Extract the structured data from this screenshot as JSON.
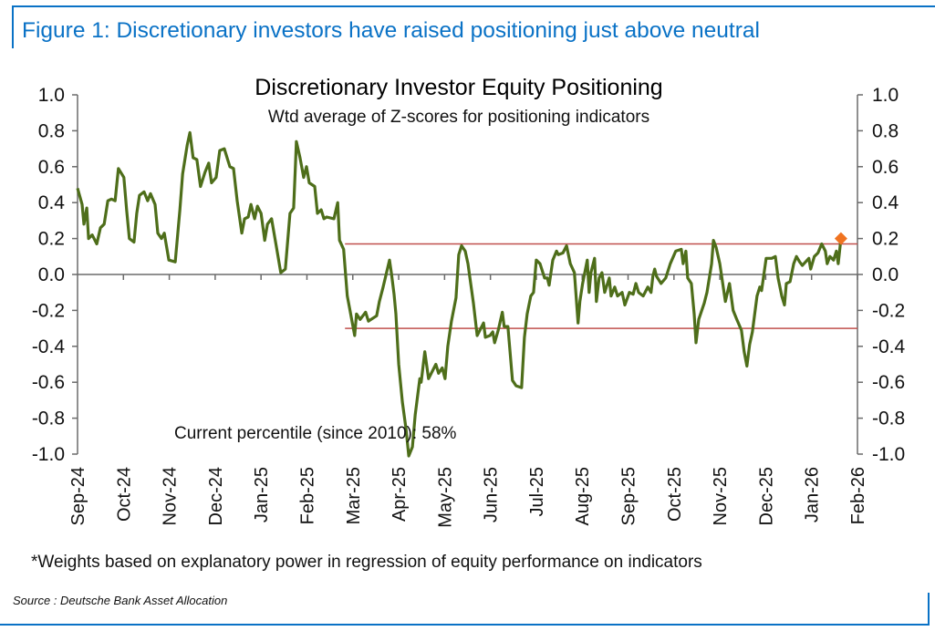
{
  "figure_title": "Figure 1: Discretionary investors have raised positioning just above neutral",
  "footnote": "*Weights based on explanatory power in regression of equity performance on indicators",
  "source": "Source : Deutsche Bank Asset Allocation",
  "colors": {
    "frame": "#0a72c6",
    "line": "#4e6e1a",
    "band": "#c0504d",
    "marker": "#f07320",
    "axis": "#6b6b6b"
  },
  "chart_data": {
    "type": "line",
    "title": "Discretionary Investor Equity Positioning",
    "subtitle": "Wtd average of Z-scores for positioning indicators",
    "annotation": "Current percentile (since 2010): 58%",
    "xlabel": "",
    "ylabel": "",
    "ylim": [
      -1.0,
      1.0
    ],
    "yticks": [
      "1.0",
      "0.8",
      "0.6",
      "0.4",
      "0.2",
      "0.0",
      "-0.2",
      "-0.4",
      "-0.6",
      "-0.8",
      "-1.0"
    ],
    "ytick_values": [
      1.0,
      0.8,
      0.6,
      0.4,
      0.2,
      0.0,
      -0.2,
      -0.4,
      -0.6,
      -0.8,
      -1.0
    ],
    "x_unit": "months since Sep-24",
    "xlim": [
      0,
      17
    ],
    "xtick_labels": [
      "Sep-24",
      "Oct-24",
      "Nov-24",
      "Dec-24",
      "Jan-25",
      "Feb-25",
      "Mar-25",
      "Apr-25",
      "May-25",
      "Jun-25",
      "Jul-25",
      "Aug-25",
      "Sep-25",
      "Oct-25",
      "Nov-25",
      "Dec-25",
      "Jan-26",
      "Feb-26"
    ],
    "reference_lines": [
      {
        "value": 0.17,
        "x_start": 5.83,
        "x_end": 17
      },
      {
        "value": -0.3,
        "x_start": 5.83,
        "x_end": 17
      }
    ],
    "latest_point": {
      "x": 16.64,
      "y": 0.2
    },
    "series": [
      {
        "name": "Discretionary Investor Equity Positioning",
        "points": [
          [
            0.0,
            0.48
          ],
          [
            0.1,
            0.39
          ],
          [
            0.14,
            0.28
          ],
          [
            0.2,
            0.37
          ],
          [
            0.24,
            0.2
          ],
          [
            0.32,
            0.22
          ],
          [
            0.42,
            0.17
          ],
          [
            0.5,
            0.26
          ],
          [
            0.58,
            0.28
          ],
          [
            0.66,
            0.41
          ],
          [
            0.74,
            0.42
          ],
          [
            0.82,
            0.41
          ],
          [
            0.89,
            0.59
          ],
          [
            1.01,
            0.54
          ],
          [
            1.07,
            0.36
          ],
          [
            1.13,
            0.2
          ],
          [
            1.23,
            0.18
          ],
          [
            1.29,
            0.34
          ],
          [
            1.35,
            0.44
          ],
          [
            1.45,
            0.46
          ],
          [
            1.53,
            0.41
          ],
          [
            1.59,
            0.45
          ],
          [
            1.69,
            0.39
          ],
          [
            1.75,
            0.23
          ],
          [
            1.83,
            0.2
          ],
          [
            1.89,
            0.23
          ],
          [
            1.99,
            0.08
          ],
          [
            2.13,
            0.07
          ],
          [
            2.23,
            0.36
          ],
          [
            2.29,
            0.56
          ],
          [
            2.39,
            0.72
          ],
          [
            2.45,
            0.79
          ],
          [
            2.52,
            0.65
          ],
          [
            2.6,
            0.64
          ],
          [
            2.68,
            0.49
          ],
          [
            2.78,
            0.57
          ],
          [
            2.86,
            0.62
          ],
          [
            2.92,
            0.51
          ],
          [
            3.02,
            0.54
          ],
          [
            3.1,
            0.69
          ],
          [
            3.2,
            0.7
          ],
          [
            3.32,
            0.6
          ],
          [
            3.4,
            0.59
          ],
          [
            3.48,
            0.41
          ],
          [
            3.58,
            0.23
          ],
          [
            3.64,
            0.31
          ],
          [
            3.72,
            0.32
          ],
          [
            3.78,
            0.39
          ],
          [
            3.86,
            0.31
          ],
          [
            3.92,
            0.38
          ],
          [
            4.0,
            0.34
          ],
          [
            4.08,
            0.19
          ],
          [
            4.14,
            0.28
          ],
          [
            4.23,
            0.31
          ],
          [
            4.33,
            0.16
          ],
          [
            4.43,
            0.01
          ],
          [
            4.53,
            0.03
          ],
          [
            4.63,
            0.34
          ],
          [
            4.71,
            0.37
          ],
          [
            4.75,
            0.61
          ],
          [
            4.77,
            0.74
          ],
          [
            4.85,
            0.65
          ],
          [
            4.93,
            0.54
          ],
          [
            4.99,
            0.6
          ],
          [
            5.05,
            0.51
          ],
          [
            5.17,
            0.49
          ],
          [
            5.23,
            0.34
          ],
          [
            5.31,
            0.36
          ],
          [
            5.37,
            0.31
          ],
          [
            5.43,
            0.32
          ],
          [
            5.59,
            0.31
          ],
          [
            5.67,
            0.4
          ],
          [
            5.71,
            0.19
          ],
          [
            5.8,
            0.14
          ],
          [
            5.88,
            -0.12
          ],
          [
            5.94,
            -0.2
          ],
          [
            6.04,
            -0.34
          ],
          [
            6.08,
            -0.22
          ],
          [
            6.16,
            -0.25
          ],
          [
            6.28,
            -0.21
          ],
          [
            6.34,
            -0.26
          ],
          [
            6.52,
            -0.23
          ],
          [
            6.58,
            -0.15
          ],
          [
            6.66,
            -0.07
          ],
          [
            6.8,
            0.08
          ],
          [
            6.84,
            0.01
          ],
          [
            6.9,
            -0.11
          ],
          [
            6.94,
            -0.22
          ],
          [
            7.0,
            -0.5
          ],
          [
            7.08,
            -0.71
          ],
          [
            7.16,
            -0.86
          ],
          [
            7.22,
            -1.01
          ],
          [
            7.3,
            -0.96
          ],
          [
            7.36,
            -0.78
          ],
          [
            7.46,
            -0.58
          ],
          [
            7.49,
            -0.6
          ],
          [
            7.57,
            -0.43
          ],
          [
            7.65,
            -0.58
          ],
          [
            7.81,
            -0.5
          ],
          [
            7.87,
            -0.55
          ],
          [
            7.95,
            -0.52
          ],
          [
            8.01,
            -0.58
          ],
          [
            8.07,
            -0.4
          ],
          [
            8.15,
            -0.26
          ],
          [
            8.25,
            -0.13
          ],
          [
            8.31,
            0.11
          ],
          [
            8.37,
            0.16
          ],
          [
            8.45,
            0.13
          ],
          [
            8.51,
            0.06
          ],
          [
            8.63,
            -0.16
          ],
          [
            8.71,
            -0.34
          ],
          [
            8.85,
            -0.27
          ],
          [
            8.89,
            -0.35
          ],
          [
            8.99,
            -0.34
          ],
          [
            9.05,
            -0.32
          ],
          [
            9.09,
            -0.38
          ],
          [
            9.17,
            -0.31
          ],
          [
            9.26,
            -0.21
          ],
          [
            9.3,
            -0.29
          ],
          [
            9.38,
            -0.29
          ],
          [
            9.48,
            -0.59
          ],
          [
            9.56,
            -0.62
          ],
          [
            9.68,
            -0.63
          ],
          [
            9.74,
            -0.35
          ],
          [
            9.8,
            -0.22
          ],
          [
            9.88,
            -0.12
          ],
          [
            9.94,
            -0.1
          ],
          [
            10.0,
            0.08
          ],
          [
            10.08,
            0.06
          ],
          [
            10.18,
            -0.02
          ],
          [
            10.24,
            -0.02
          ],
          [
            10.28,
            -0.06
          ],
          [
            10.36,
            0.08
          ],
          [
            10.44,
            0.13
          ],
          [
            10.48,
            0.11
          ],
          [
            10.58,
            0.12
          ],
          [
            10.66,
            0.16
          ],
          [
            10.74,
            0.06
          ],
          [
            10.83,
            0.01
          ],
          [
            10.91,
            -0.27
          ],
          [
            10.95,
            -0.15
          ],
          [
            11.01,
            -0.05
          ],
          [
            11.11,
            0.08
          ],
          [
            11.15,
            -0.1
          ],
          [
            11.19,
            0.01
          ],
          [
            11.27,
            0.09
          ],
          [
            11.31,
            -0.15
          ],
          [
            11.37,
            -0.02
          ],
          [
            11.43,
            0.01
          ],
          [
            11.49,
            -0.1
          ],
          [
            11.59,
            -0.02
          ],
          [
            11.63,
            -0.12
          ],
          [
            11.71,
            -0.07
          ],
          [
            11.77,
            -0.12
          ],
          [
            11.87,
            -0.1
          ],
          [
            11.93,
            -0.17
          ],
          [
            12.03,
            -0.1
          ],
          [
            12.11,
            -0.11
          ],
          [
            12.17,
            -0.05
          ],
          [
            12.23,
            -0.1
          ],
          [
            12.33,
            -0.12
          ],
          [
            12.43,
            -0.07
          ],
          [
            12.5,
            -0.1
          ],
          [
            12.54,
            -0.01
          ],
          [
            12.58,
            0.03
          ],
          [
            12.62,
            -0.01
          ],
          [
            12.72,
            -0.05
          ],
          [
            12.82,
            -0.02
          ],
          [
            12.92,
            0.06
          ],
          [
            13.04,
            0.13
          ],
          [
            13.16,
            0.14
          ],
          [
            13.2,
            0.06
          ],
          [
            13.26,
            0.13
          ],
          [
            13.3,
            -0.02
          ],
          [
            13.38,
            -0.05
          ],
          [
            13.44,
            -0.22
          ],
          [
            13.48,
            -0.38
          ],
          [
            13.54,
            -0.25
          ],
          [
            13.66,
            -0.16
          ],
          [
            13.72,
            -0.1
          ],
          [
            13.82,
            0.06
          ],
          [
            13.86,
            0.19
          ],
          [
            13.92,
            0.15
          ],
          [
            14.0,
            0.06
          ],
          [
            14.12,
            -0.15
          ],
          [
            14.21,
            -0.05
          ],
          [
            14.29,
            -0.2
          ],
          [
            14.37,
            -0.25
          ],
          [
            14.47,
            -0.31
          ],
          [
            14.53,
            -0.43
          ],
          [
            14.59,
            -0.51
          ],
          [
            14.65,
            -0.39
          ],
          [
            14.71,
            -0.32
          ],
          [
            14.81,
            -0.12
          ],
          [
            14.87,
            -0.07
          ],
          [
            14.91,
            -0.09
          ],
          [
            15.01,
            0.09
          ],
          [
            15.13,
            0.09
          ],
          [
            15.21,
            0.1
          ],
          [
            15.27,
            -0.02
          ],
          [
            15.35,
            -0.12
          ],
          [
            15.41,
            -0.17
          ],
          [
            15.45,
            -0.05
          ],
          [
            15.53,
            -0.04
          ],
          [
            15.61,
            0.06
          ],
          [
            15.67,
            0.1
          ],
          [
            15.74,
            0.07
          ],
          [
            15.8,
            0.05
          ],
          [
            15.94,
            0.09
          ],
          [
            15.98,
            0.03
          ],
          [
            16.06,
            0.1
          ],
          [
            16.14,
            0.12
          ],
          [
            16.22,
            0.17
          ],
          [
            16.3,
            0.13
          ],
          [
            16.34,
            0.06
          ],
          [
            16.4,
            0.1
          ],
          [
            16.48,
            0.08
          ],
          [
            16.54,
            0.13
          ],
          [
            16.58,
            0.06
          ],
          [
            16.64,
            0.2
          ]
        ]
      }
    ]
  }
}
